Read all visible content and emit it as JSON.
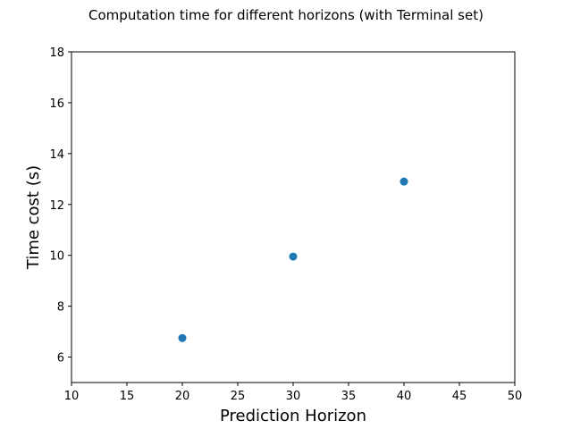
{
  "chart_data": {
    "type": "scatter",
    "title": "Computation time for different horizons (with Terminal set)",
    "xlabel": "Prediction Horizon",
    "ylabel": "Time cost (s)",
    "xlim": [
      10,
      50
    ],
    "ylim": [
      5,
      18
    ],
    "xticks": [
      10,
      15,
      20,
      25,
      30,
      35,
      40,
      45,
      50
    ],
    "yticks": [
      6,
      8,
      10,
      12,
      14,
      16,
      18
    ],
    "grid": false,
    "series": [
      {
        "color": "#1f77b4",
        "x": [
          20,
          30,
          40
        ],
        "y": [
          6.75,
          9.95,
          12.9
        ]
      }
    ]
  }
}
